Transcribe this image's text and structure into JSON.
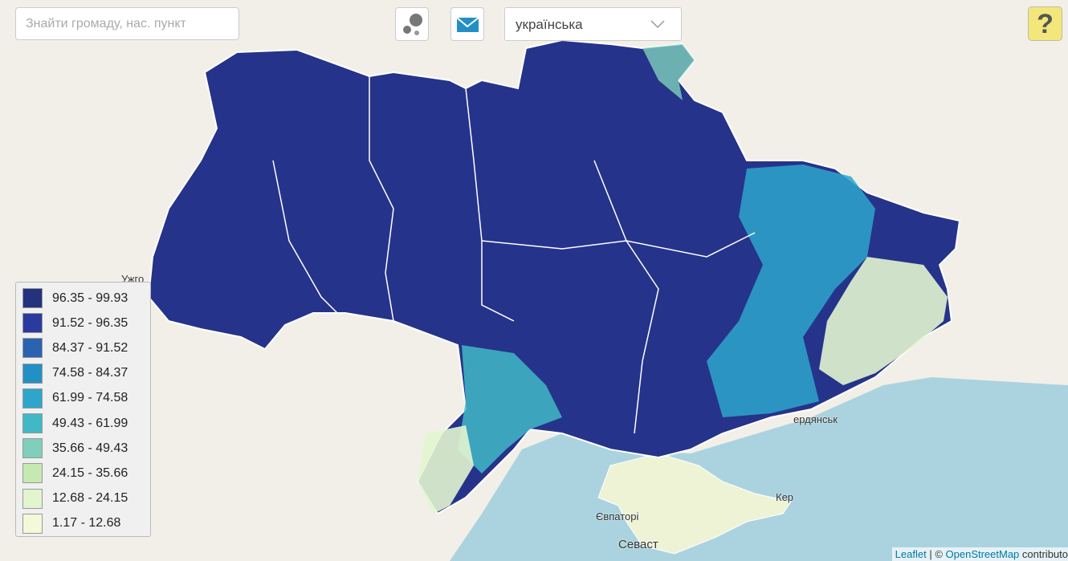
{
  "search": {
    "placeholder": "Знайти громаду, нас. пункт"
  },
  "language": {
    "selected": "українська"
  },
  "help": {
    "label": "?"
  },
  "legend": {
    "items": [
      {
        "label": "96.35 - 99.93",
        "color": "#24327e"
      },
      {
        "label": "91.52 - 96.35",
        "color": "#2b3a9e"
      },
      {
        "label": "84.37 - 91.52",
        "color": "#2b63b3"
      },
      {
        "label": "74.58 - 84.37",
        "color": "#2390c5"
      },
      {
        "label": "61.99 - 74.58",
        "color": "#2ea6cb"
      },
      {
        "label": "49.43 - 61.99",
        "color": "#41b8c6"
      },
      {
        "label": "35.66 - 49.43",
        "color": "#7fcfbb"
      },
      {
        "label": "24.15 - 35.66",
        "color": "#c5e9b0"
      },
      {
        "label": "12.68 - 24.15",
        "color": "#e2f5cf"
      },
      {
        "label": "1.17 - 12.68",
        "color": "#f4f9d9"
      }
    ]
  },
  "map_labels": [
    {
      "text": "Ужго"
    },
    {
      "text": "ердянськ"
    },
    {
      "text": "Євпаторі"
    },
    {
      "text": "Севаст"
    },
    {
      "text": "Кер"
    }
  ],
  "attribution": {
    "leaflet": "Leaflet",
    "rest": " | © ",
    "osm": "OpenStreetMap",
    "tail": " contributo"
  }
}
